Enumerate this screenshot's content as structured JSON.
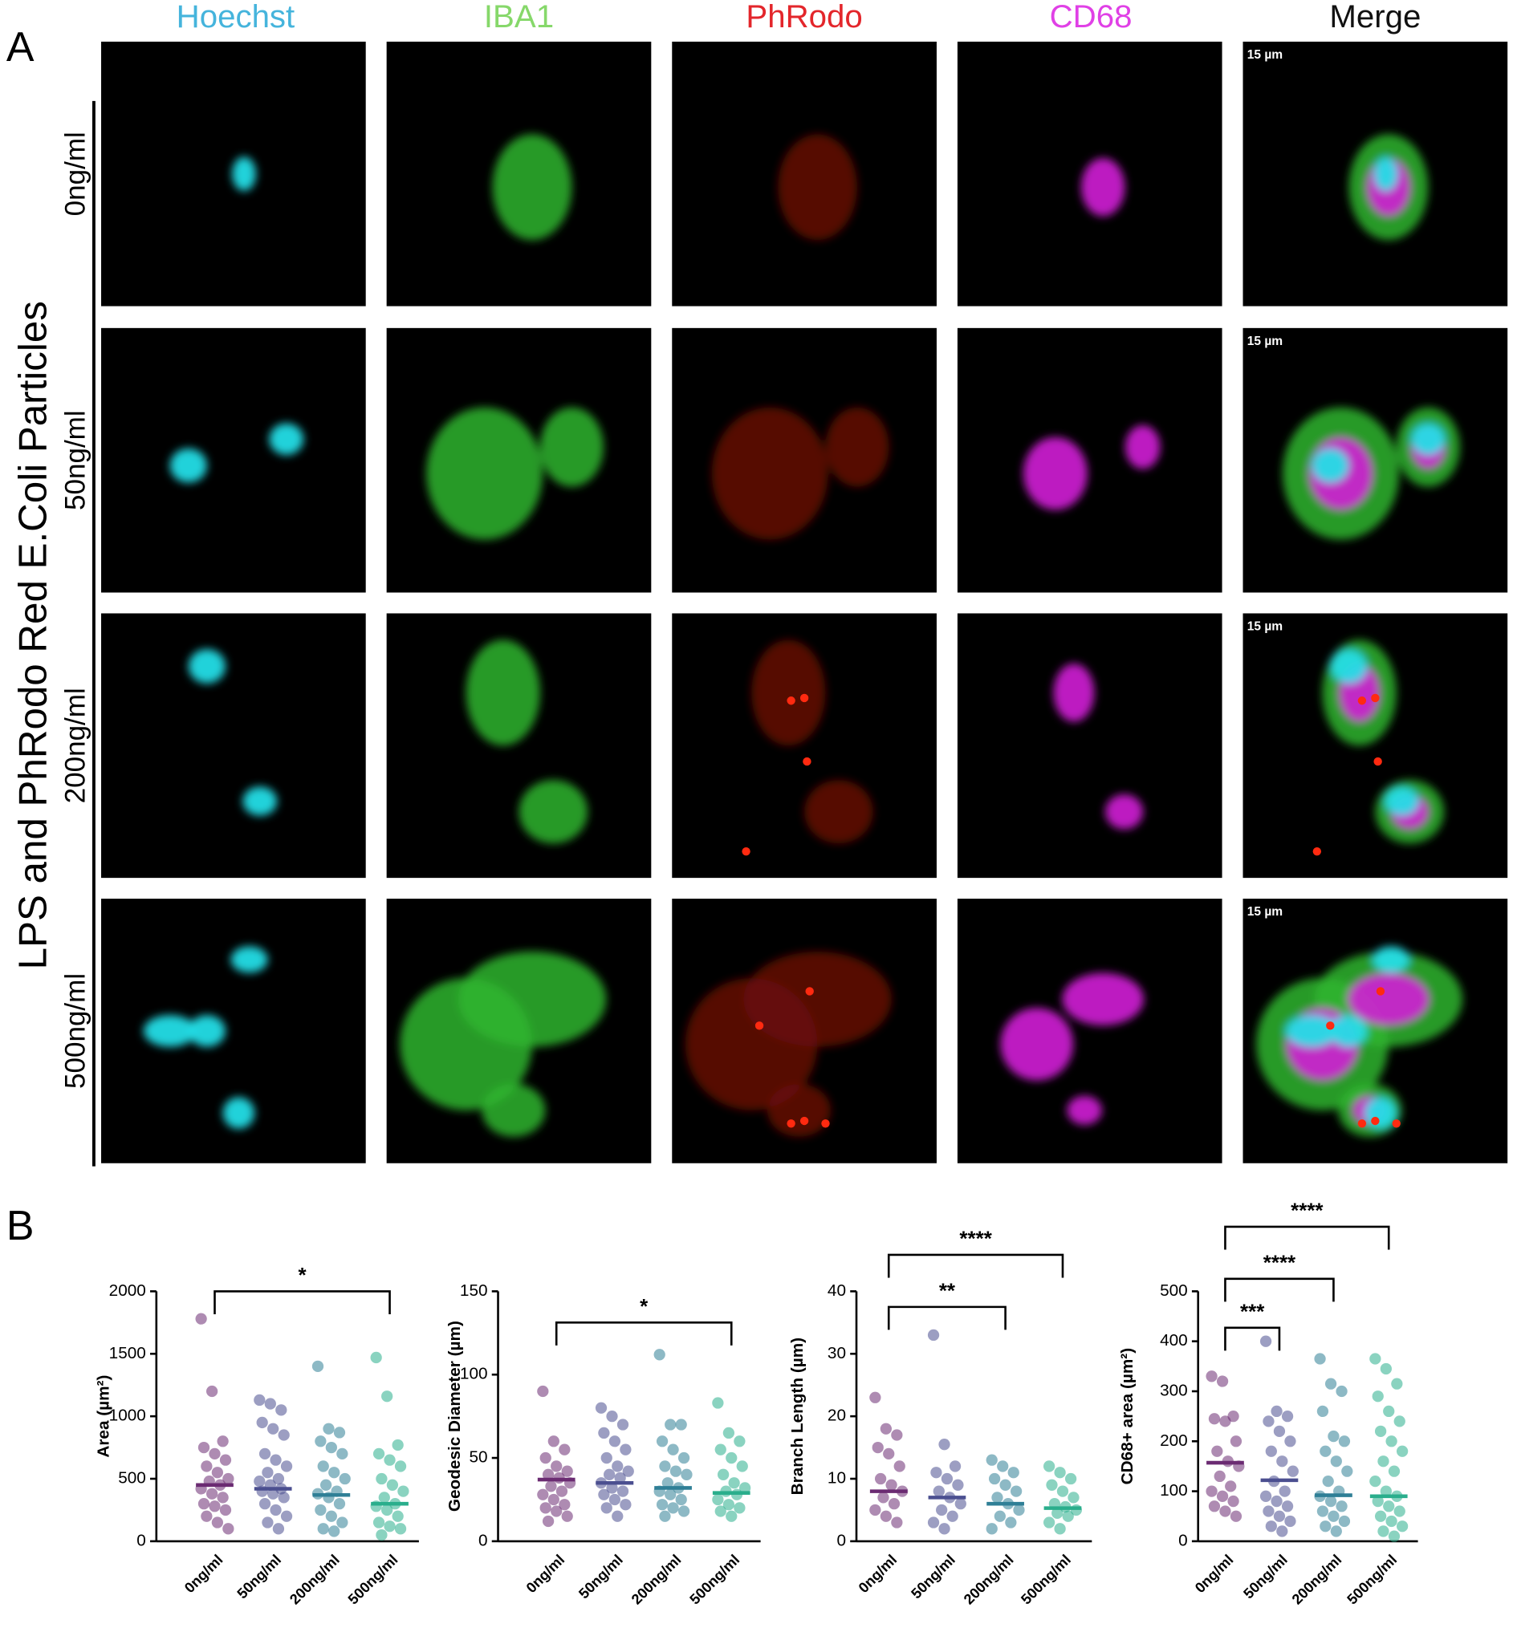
{
  "panel_a": {
    "label": "A",
    "columns": [
      "Hoechst",
      "IBA1",
      "PhRodo",
      "CD68",
      "Merge"
    ],
    "column_colors": [
      "#45b4dc",
      "#86d86a",
      "#e3262b",
      "#e040e6",
      "#111111"
    ],
    "rows": [
      "0ng/ml",
      "50ng/ml",
      "200ng/ml",
      "500ng/ml"
    ],
    "side_label": "LPS and PhRodo Red E.Coli Particles",
    "scale_bars": [
      "15 µm",
      "15 µm",
      "15 µm",
      "15 µm"
    ]
  },
  "panel_b": {
    "label": "B"
  },
  "chart_data": [
    {
      "type": "strip",
      "y_label": "Area (µm²)",
      "categories": [
        "0ng/ml",
        "50ng/ml",
        "200ng/ml",
        "500ng/ml"
      ],
      "colors": [
        "#6b2b72",
        "#4b4f90",
        "#2f7f96",
        "#2aae8c"
      ],
      "ylim": [
        0,
        2000
      ],
      "yticks": [
        0,
        500,
        1000,
        1500,
        2000
      ],
      "values": [
        [
          1780,
          1200,
          800,
          750,
          700,
          650,
          600,
          550,
          500,
          480,
          450,
          420,
          380,
          350,
          300,
          280,
          250,
          200,
          150,
          100
        ],
        [
          1130,
          1100,
          1050,
          950,
          900,
          850,
          700,
          650,
          600,
          550,
          500,
          480,
          450,
          420,
          400,
          380,
          350,
          300,
          250,
          200,
          150,
          100
        ],
        [
          1400,
          900,
          870,
          800,
          750,
          700,
          600,
          550,
          500,
          450,
          400,
          380,
          350,
          300,
          250,
          200,
          150,
          100,
          80
        ],
        [
          1470,
          1160,
          770,
          700,
          650,
          600,
          500,
          450,
          400,
          350,
          300,
          280,
          250,
          200,
          150,
          120,
          100,
          50
        ]
      ],
      "means": [
        450,
        420,
        370,
        300
      ],
      "annotations": [
        "*"
      ]
    },
    {
      "type": "strip",
      "y_label": "Geodesic Diameter (µm)",
      "categories": [
        "0ng/ml",
        "50ng/ml",
        "200ng/ml",
        "500ng/ml"
      ],
      "colors": [
        "#6b2b72",
        "#4b4f90",
        "#2f7f96",
        "#2aae8c"
      ],
      "ylim": [
        0,
        150
      ],
      "yticks": [
        0,
        50,
        100,
        150
      ],
      "values": [
        [
          90,
          60,
          55,
          50,
          45,
          42,
          40,
          38,
          35,
          33,
          30,
          28,
          25,
          22,
          20,
          18,
          15,
          12
        ],
        [
          80,
          75,
          70,
          65,
          60,
          55,
          50,
          45,
          42,
          40,
          38,
          35,
          32,
          30,
          28,
          25,
          22,
          20,
          15
        ],
        [
          112,
          70,
          70,
          60,
          55,
          50,
          45,
          42,
          40,
          35,
          32,
          30,
          28,
          25,
          22,
          20,
          18,
          15
        ],
        [
          83,
          65,
          60,
          55,
          50,
          45,
          40,
          35,
          32,
          30,
          28,
          25,
          22,
          20,
          18,
          15
        ]
      ],
      "means": [
        37,
        35,
        32,
        29
      ],
      "annotations": [
        "*"
      ]
    },
    {
      "type": "strip",
      "y_label": "Branch Length (µm)",
      "categories": [
        "0ng/ml",
        "50ng/ml",
        "200ng/ml",
        "500ng/ml"
      ],
      "colors": [
        "#6b2b72",
        "#4b4f90",
        "#2f7f96",
        "#2aae8c"
      ],
      "ylim": [
        0,
        40
      ],
      "yticks": [
        0,
        10,
        20,
        30,
        40
      ],
      "values": [
        [
          23,
          18,
          17,
          15,
          14,
          12,
          10,
          9,
          8,
          7,
          6,
          5,
          4,
          3
        ],
        [
          33,
          15.5,
          12,
          11,
          10,
          9,
          8,
          7,
          6,
          5,
          4,
          3,
          2
        ],
        [
          13,
          12,
          11,
          10,
          9,
          8,
          7,
          6,
          5,
          4,
          3,
          2
        ],
        [
          12,
          11,
          10,
          9,
          8,
          7,
          6,
          5.5,
          5,
          4.5,
          4,
          3,
          2
        ]
      ],
      "means": [
        8,
        7,
        6,
        5.3
      ],
      "annotations": [
        "**",
        "****"
      ]
    },
    {
      "type": "strip",
      "y_label": "CD68+ area (µm²)",
      "categories": [
        "0ng/ml",
        "50ng/ml",
        "200ng/ml",
        "500ng/ml"
      ],
      "colors": [
        "#6b2b72",
        "#4b4f90",
        "#2f7f96",
        "#2aae8c"
      ],
      "ylim": [
        0,
        500
      ],
      "yticks": [
        0,
        100,
        200,
        300,
        400,
        500
      ],
      "values": [
        [
          330,
          320,
          250,
          245,
          240,
          200,
          180,
          160,
          150,
          130,
          110,
          100,
          90,
          80,
          70,
          60,
          50
        ],
        [
          400,
          260,
          250,
          240,
          220,
          200,
          180,
          160,
          140,
          120,
          100,
          90,
          80,
          70,
          60,
          50,
          40,
          30,
          20
        ],
        [
          365,
          315,
          300,
          260,
          210,
          200,
          180,
          160,
          140,
          120,
          100,
          90,
          80,
          70,
          60,
          50,
          40,
          30,
          20
        ],
        [
          365,
          345,
          315,
          290,
          260,
          240,
          220,
          200,
          180,
          160,
          140,
          120,
          100,
          90,
          80,
          70,
          60,
          50,
          40,
          30,
          20,
          10
        ]
      ],
      "means": [
        157,
        122,
        92,
        90
      ],
      "annotations": [
        "***",
        "****",
        "****"
      ]
    }
  ]
}
